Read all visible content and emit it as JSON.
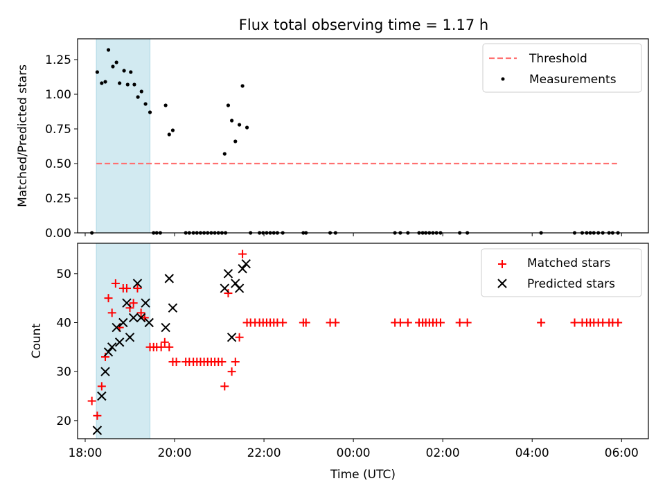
{
  "chart_data": [
    {
      "type": "scatter",
      "title": "Flux total observing time = 1.17 h",
      "xlabel": "",
      "ylabel": "Matched/Predicted stars",
      "xlim": [
        17.83,
        30.6
      ],
      "ylim": [
        0.0,
        1.4
      ],
      "yticks": [
        0.0,
        0.25,
        0.5,
        0.75,
        1.0,
        1.25
      ],
      "ytick_labels": [
        "0.00",
        "0.25",
        "0.50",
        "0.75",
        "1.00",
        "1.25"
      ],
      "shaded_span": [
        18.25,
        19.45
      ],
      "colors": {
        "span": "#add8e6",
        "threshold": "#ff7070",
        "measurements": "#000000"
      },
      "legend": {
        "position": "top-right",
        "entries": [
          "Threshold",
          "Measurements"
        ]
      },
      "threshold": {
        "name": "Threshold",
        "x": [
          18.25,
          29.9
        ],
        "y": 0.5
      },
      "series": [
        {
          "name": "Measurements",
          "points": [
            [
              18.15,
              0.0
            ],
            [
              18.27,
              1.16
            ],
            [
              18.37,
              1.08
            ],
            [
              18.45,
              1.09
            ],
            [
              18.52,
              1.32
            ],
            [
              18.62,
              1.2
            ],
            [
              18.7,
              1.23
            ],
            [
              18.77,
              1.08
            ],
            [
              18.87,
              1.17
            ],
            [
              18.95,
              1.07
            ],
            [
              19.02,
              1.16
            ],
            [
              19.1,
              1.07
            ],
            [
              19.18,
              0.98
            ],
            [
              19.26,
              1.02
            ],
            [
              19.35,
              0.93
            ],
            [
              19.45,
              0.87
            ],
            [
              19.53,
              0.0
            ],
            [
              19.6,
              0.0
            ],
            [
              19.68,
              0.0
            ],
            [
              19.8,
              0.92
            ],
            [
              19.88,
              0.71
            ],
            [
              19.96,
              0.74
            ],
            [
              20.25,
              0.0
            ],
            [
              20.33,
              0.0
            ],
            [
              20.42,
              0.0
            ],
            [
              20.5,
              0.0
            ],
            [
              20.58,
              0.0
            ],
            [
              20.66,
              0.0
            ],
            [
              20.74,
              0.0
            ],
            [
              20.82,
              0.0
            ],
            [
              20.9,
              0.0
            ],
            [
              20.98,
              0.0
            ],
            [
              21.06,
              0.0
            ],
            [
              21.14,
              0.0
            ],
            [
              21.12,
              0.57
            ],
            [
              21.2,
              0.92
            ],
            [
              21.28,
              0.81
            ],
            [
              21.36,
              0.66
            ],
            [
              21.45,
              0.78
            ],
            [
              21.52,
              1.06
            ],
            [
              21.62,
              0.76
            ],
            [
              21.7,
              0.0
            ],
            [
              21.9,
              0.0
            ],
            [
              21.98,
              0.0
            ],
            [
              22.06,
              0.0
            ],
            [
              22.14,
              0.0
            ],
            [
              22.22,
              0.0
            ],
            [
              22.3,
              0.0
            ],
            [
              22.42,
              0.0
            ],
            [
              22.88,
              0.0
            ],
            [
              22.94,
              0.0
            ],
            [
              23.48,
              0.0
            ],
            [
              23.6,
              0.0
            ],
            [
              24.93,
              0.0
            ],
            [
              25.05,
              0.0
            ],
            [
              25.22,
              0.0
            ],
            [
              25.47,
              0.0
            ],
            [
              25.55,
              0.0
            ],
            [
              25.62,
              0.0
            ],
            [
              25.7,
              0.0
            ],
            [
              25.78,
              0.0
            ],
            [
              25.86,
              0.0
            ],
            [
              25.95,
              0.0
            ],
            [
              26.38,
              0.0
            ],
            [
              26.55,
              0.0
            ],
            [
              28.2,
              0.0
            ],
            [
              28.95,
              0.0
            ],
            [
              29.12,
              0.0
            ],
            [
              29.22,
              0.0
            ],
            [
              29.3,
              0.0
            ],
            [
              29.38,
              0.0
            ],
            [
              29.48,
              0.0
            ],
            [
              29.58,
              0.0
            ],
            [
              29.72,
              0.0
            ],
            [
              29.8,
              0.0
            ],
            [
              29.92,
              0.0
            ]
          ]
        }
      ]
    },
    {
      "type": "scatter",
      "title": "",
      "xlabel": "Time (UTC)",
      "ylabel": "Count",
      "xlim": [
        17.83,
        30.6
      ],
      "ylim": [
        16.3,
        56.2
      ],
      "xticks": [
        18,
        20,
        22,
        24,
        26,
        28,
        30
      ],
      "xtick_labels": [
        "18:00",
        "20:00",
        "22:00",
        "00:00",
        "02:00",
        "04:00",
        "06:00"
      ],
      "yticks": [
        20,
        30,
        40,
        50
      ],
      "ytick_labels": [
        "20",
        "30",
        "40",
        "50"
      ],
      "shaded_span": [
        18.25,
        19.45
      ],
      "colors": {
        "span": "#add8e6",
        "matched": "#ff0000",
        "predicted": "#000000"
      },
      "legend": {
        "position": "top-right",
        "entries": [
          "Matched stars",
          "Predicted stars"
        ]
      },
      "series": [
        {
          "name": "Matched stars",
          "marker": "plus",
          "points": [
            [
              18.15,
              24
            ],
            [
              18.27,
              21
            ],
            [
              18.37,
              27
            ],
            [
              18.45,
              33
            ],
            [
              18.52,
              45
            ],
            [
              18.6,
              42
            ],
            [
              18.68,
              48
            ],
            [
              18.77,
              39
            ],
            [
              18.85,
              47
            ],
            [
              18.93,
              47
            ],
            [
              19.0,
              43
            ],
            [
              19.08,
              44
            ],
            [
              19.17,
              47
            ],
            [
              19.25,
              42
            ],
            [
              19.33,
              41
            ],
            [
              19.45,
              35
            ],
            [
              19.53,
              35
            ],
            [
              19.6,
              35
            ],
            [
              19.7,
              35
            ],
            [
              19.78,
              36
            ],
            [
              19.88,
              35
            ],
            [
              19.96,
              32
            ],
            [
              20.04,
              32
            ],
            [
              20.25,
              32
            ],
            [
              20.33,
              32
            ],
            [
              20.42,
              32
            ],
            [
              20.5,
              32
            ],
            [
              20.58,
              32
            ],
            [
              20.66,
              32
            ],
            [
              20.74,
              32
            ],
            [
              20.82,
              32
            ],
            [
              20.9,
              32
            ],
            [
              20.98,
              32
            ],
            [
              21.06,
              32
            ],
            [
              21.12,
              27
            ],
            [
              21.2,
              46
            ],
            [
              21.28,
              30
            ],
            [
              21.36,
              32
            ],
            [
              21.45,
              37
            ],
            [
              21.52,
              54
            ],
            [
              21.62,
              40
            ],
            [
              21.7,
              40
            ],
            [
              21.8,
              40
            ],
            [
              21.9,
              40
            ],
            [
              21.98,
              40
            ],
            [
              22.06,
              40
            ],
            [
              22.14,
              40
            ],
            [
              22.22,
              40
            ],
            [
              22.3,
              40
            ],
            [
              22.42,
              40
            ],
            [
              22.88,
              40
            ],
            [
              22.94,
              40
            ],
            [
              23.48,
              40
            ],
            [
              23.6,
              40
            ],
            [
              24.93,
              40
            ],
            [
              25.05,
              40
            ],
            [
              25.22,
              40
            ],
            [
              25.47,
              40
            ],
            [
              25.55,
              40
            ],
            [
              25.62,
              40
            ],
            [
              25.7,
              40
            ],
            [
              25.78,
              40
            ],
            [
              25.86,
              40
            ],
            [
              25.95,
              40
            ],
            [
              26.38,
              40
            ],
            [
              26.55,
              40
            ],
            [
              28.2,
              40
            ],
            [
              28.95,
              40
            ],
            [
              29.12,
              40
            ],
            [
              29.22,
              40
            ],
            [
              29.3,
              40
            ],
            [
              29.38,
              40
            ],
            [
              29.48,
              40
            ],
            [
              29.58,
              40
            ],
            [
              29.72,
              40
            ],
            [
              29.8,
              40
            ],
            [
              29.92,
              40
            ]
          ]
        },
        {
          "name": "Predicted stars",
          "marker": "x",
          "points": [
            [
              18.27,
              18
            ],
            [
              18.37,
              25
            ],
            [
              18.45,
              30
            ],
            [
              18.52,
              34
            ],
            [
              18.6,
              35
            ],
            [
              18.7,
              39
            ],
            [
              18.77,
              36
            ],
            [
              18.85,
              40
            ],
            [
              18.93,
              44
            ],
            [
              19.0,
              37
            ],
            [
              19.08,
              41
            ],
            [
              19.17,
              48
            ],
            [
              19.25,
              41
            ],
            [
              19.35,
              44
            ],
            [
              19.43,
              40
            ],
            [
              19.8,
              39
            ],
            [
              19.88,
              49
            ],
            [
              19.96,
              43
            ],
            [
              21.12,
              47
            ],
            [
              21.2,
              50
            ],
            [
              21.28,
              37
            ],
            [
              21.36,
              48
            ],
            [
              21.45,
              47
            ],
            [
              21.52,
              51
            ],
            [
              21.6,
              52
            ]
          ]
        }
      ]
    }
  ]
}
